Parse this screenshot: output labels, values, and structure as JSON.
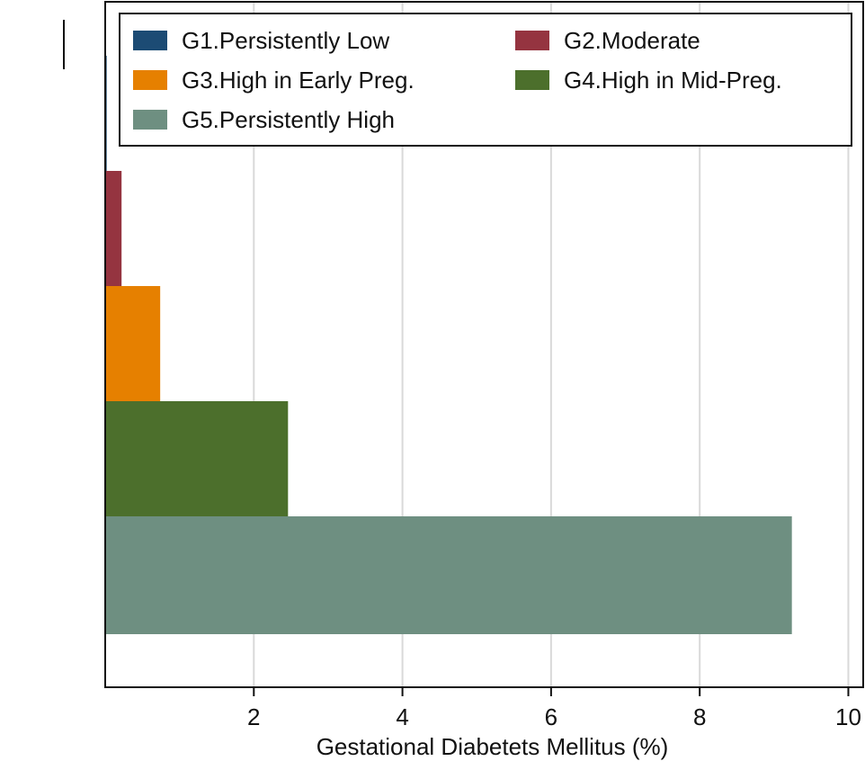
{
  "chart_data": {
    "type": "bar",
    "orientation": "horizontal",
    "title": "",
    "xlabel": "Gestational Diabetets Mellitus (%)",
    "ylabel": "",
    "xlim": [
      0,
      10.2
    ],
    "xticks": [
      "2",
      "4",
      "6",
      "8",
      "10"
    ],
    "xtick_values": [
      2,
      4,
      6,
      8,
      10
    ],
    "grid": true,
    "legend_position": "top",
    "categories": [
      "G1.Persistently Low",
      "G2.Moderate",
      "G3.High in Early Preg.",
      "G4.High in Mid-Preg.",
      "G5.Persistently High"
    ],
    "values": [
      0.02,
      0.22,
      0.74,
      2.46,
      9.24
    ],
    "colors": [
      "#1c4b74",
      "#953440",
      "#e68000",
      "#4c6f2c",
      "#6e8f81"
    ]
  }
}
